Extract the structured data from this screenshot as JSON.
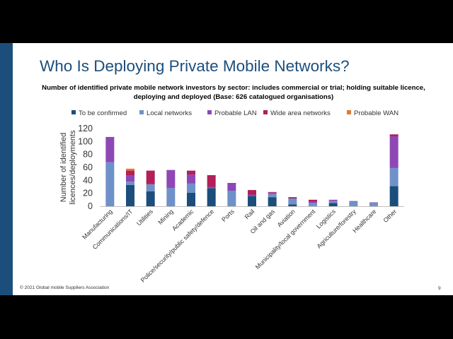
{
  "slide": {
    "title": "Who Is Deploying Private Mobile Networks?",
    "footer": "© 2021 Global mobile Suppliers Association",
    "page_number": "9"
  },
  "colors": {
    "side_bar": "#1c4e7c",
    "title": "#1c4e7c",
    "series": [
      "#1c4e7c",
      "#6f91c9",
      "#8e48b5",
      "#b21f59",
      "#e5792f"
    ]
  },
  "chart_data": {
    "type": "bar",
    "stacked": true,
    "title": "Number of identified private mobile network investors by sector: includes commercial or trial; holding suitable licence, deploying and deployed (Base: 626 catalogued organisations)",
    "title_lines": [
      "Number of identified private mobile network investors by sector: includes commercial or trial; holding suitable licence,",
      "deploying and deployed (Base: 626 catalogued organisations)"
    ],
    "ylabel": "Number of identified licences/deployments",
    "ylabel_lines": [
      "Number of identified",
      "licences/deployments"
    ],
    "xlabel": "",
    "ylim": [
      0,
      120
    ],
    "yticks": [
      0,
      20,
      40,
      60,
      80,
      100,
      120
    ],
    "grid": false,
    "legend_position": "top",
    "categories": [
      "Manufacturing",
      "Communications/IT",
      "Utilities",
      "Mining",
      "Academic",
      "Police/security/public safety/defence",
      "Ports",
      "Rail",
      "Oil and gas",
      "Aviation",
      "Municipality/local government",
      "Logistics",
      "Agriculture/forestry",
      "Healthcare",
      "Other"
    ],
    "series": [
      {
        "name": "To be confirmed",
        "values": [
          0,
          33,
          23,
          0,
          21,
          28,
          0,
          16,
          14,
          3,
          0,
          5,
          0,
          0,
          31
        ]
      },
      {
        "name": "Local networks",
        "values": [
          68,
          5,
          11,
          28,
          14,
          0,
          24,
          0,
          5,
          9,
          5,
          3,
          7,
          5,
          28
        ]
      },
      {
        "name": "Probable LAN",
        "values": [
          39,
          10,
          0,
          28,
          14,
          2,
          12,
          2,
          2,
          0,
          2,
          2,
          1,
          1,
          49
        ]
      },
      {
        "name": "Wide area networks",
        "values": [
          0,
          7,
          21,
          0,
          6,
          18,
          0,
          7,
          1,
          2,
          3,
          0,
          0,
          0,
          3
        ]
      },
      {
        "name": "Probable WAN",
        "values": [
          0,
          3,
          0,
          0,
          0,
          0,
          0,
          0,
          0,
          0,
          0,
          0,
          0,
          0,
          0
        ]
      }
    ]
  }
}
